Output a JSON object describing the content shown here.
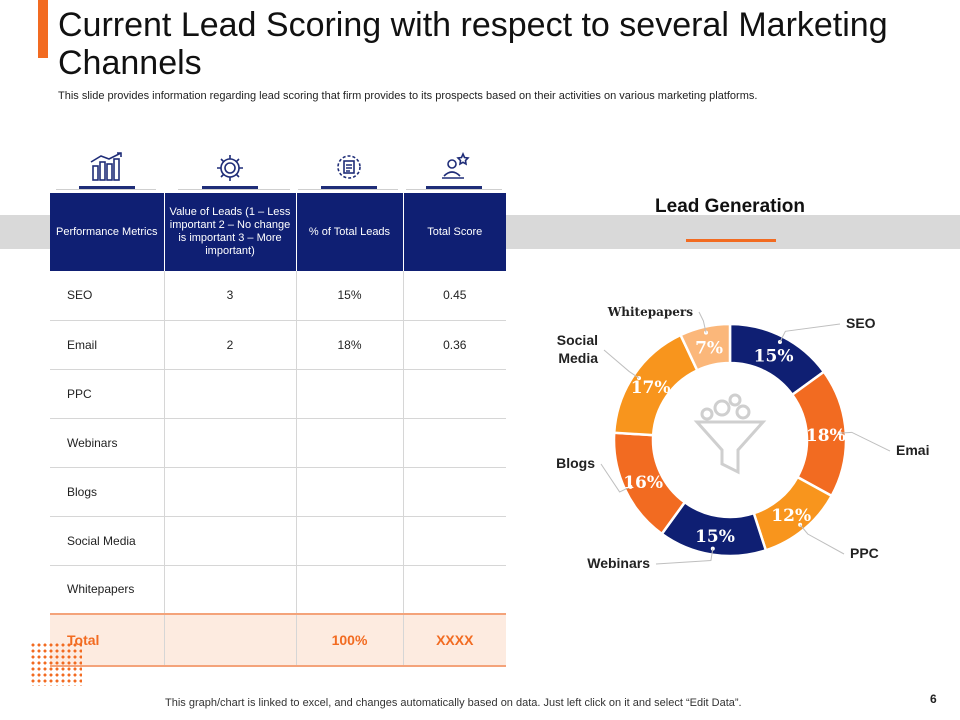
{
  "slide": {
    "title": "Current Lead Scoring with respect to several Marketing Channels",
    "subtitle": "This slide provides information regarding lead scoring that firm provides to its prospects based on their activities on various marketing platforms.",
    "footer": "This graph/chart is linked to excel,  and changes automatically based on data. Just left click on it and select “Edit Data”.",
    "page_number": "6"
  },
  "colors": {
    "navy": "#0f1f73",
    "orange": "#f26b21",
    "light_orange": "#fbb77a",
    "grey_band": "#d9d9d9"
  },
  "table": {
    "headers": [
      "Performance Metrics",
      "Value of Leads (1 – Less important 2 – No change is important 3 – More important)",
      "% of Total Leads",
      "Total Score"
    ],
    "header_icons": [
      "bar-chart-icon",
      "gear-icon",
      "badge-icon",
      "user-star-icon"
    ],
    "rows": [
      [
        "SEO",
        "3",
        "15%",
        "0.45"
      ],
      [
        "Email",
        "2",
        "18%",
        "0.36"
      ],
      [
        "PPC",
        "",
        "",
        ""
      ],
      [
        "Webinars",
        "",
        "",
        ""
      ],
      [
        "Blogs",
        "",
        "",
        ""
      ],
      [
        "Social Media",
        "",
        "",
        ""
      ],
      [
        "Whitepapers",
        "",
        "",
        ""
      ]
    ],
    "total": [
      "Total",
      "",
      "100%",
      "XXXX"
    ]
  },
  "chart_data": {
    "type": "pie",
    "title": "Lead Generation",
    "donut": true,
    "center_icon": "funnel-icon",
    "slices": [
      {
        "label": "SEO",
        "value": 15,
        "display": "15%",
        "color": "#0f1f73"
      },
      {
        "label": "Email",
        "value": 18,
        "display": "18%",
        "color": "#f26b21"
      },
      {
        "label": "PPC",
        "value": 12,
        "display": "12%",
        "color": "#f8951d"
      },
      {
        "label": "Webinars",
        "value": 15,
        "display": "15%",
        "color": "#0f1f73"
      },
      {
        "label": "Blogs",
        "value": 16,
        "display": "16%",
        "color": "#f26b21"
      },
      {
        "label": "Social Media",
        "value": 17,
        "display": "17%",
        "color": "#f8951d"
      },
      {
        "label": "Whitepapers",
        "value": 7,
        "display": "7%",
        "color": "#fbb77a"
      }
    ]
  }
}
